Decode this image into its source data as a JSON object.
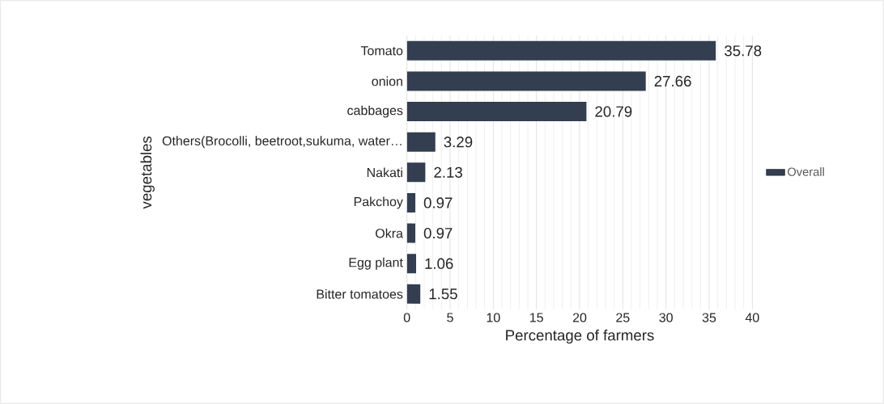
{
  "chart_data": {
    "type": "bar",
    "orientation": "horizontal",
    "xlabel": "Percentage of farmers",
    "ylabel": "vegetables",
    "categories": [
      "Tomato",
      "onion",
      "cabbages",
      "Others(Brocolli, beetroot,sukuma, water…",
      "Nakati",
      "Pakchoy",
      "Okra",
      "Egg plant",
      "Bitter tomatoes"
    ],
    "series": [
      {
        "name": "Overall",
        "color": "#333f50",
        "values": [
          35.78,
          27.66,
          20.79,
          3.29,
          2.13,
          0.97,
          0.97,
          1.06,
          1.55
        ]
      }
    ],
    "xlim": [
      0,
      40
    ],
    "xticks": [
      0,
      5,
      10,
      15,
      20,
      25,
      30,
      35,
      40
    ],
    "grid": "x",
    "legend": "right",
    "data_labels": true
  }
}
